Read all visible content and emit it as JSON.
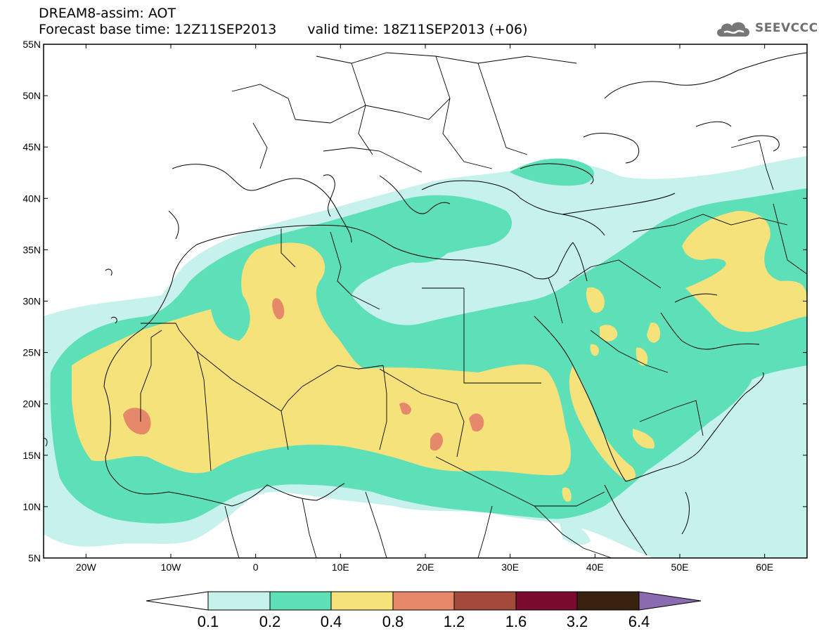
{
  "header": {
    "title": "DREAM8-assim: AOT",
    "base_time": "Forecast base time: 12Z11SEP2013",
    "valid_time": "valid time: 18Z11SEP2013 (+06)"
  },
  "logo": {
    "text": "SEEVCCC",
    "icon": "cloud-icon"
  },
  "map": {
    "variable": "AOT",
    "lon_range": [
      -25,
      65
    ],
    "lat_range": [
      5,
      55
    ],
    "lat_ticks": [
      "55N",
      "50N",
      "45N",
      "40N",
      "35N",
      "30N",
      "25N",
      "20N",
      "15N",
      "10N",
      "5N"
    ],
    "lon_ticks": [
      "20W",
      "10W",
      "0",
      "10E",
      "20E",
      "30E",
      "40E",
      "50E",
      "60E"
    ]
  },
  "colorbar": {
    "levels": [
      "0.1",
      "0.2",
      "0.4",
      "0.8",
      "1.2",
      "1.6",
      "3.2",
      "6.4"
    ],
    "colors": {
      "below": "#ffffff",
      "b1": "#c6f1ec",
      "b2": "#5ddfb8",
      "b3": "#f5e27a",
      "b4": "#e6896a",
      "b5": "#a34a3a",
      "b6": "#7a0b2c",
      "b7": "#3a2211",
      "above": "#8a6bb0"
    }
  }
}
